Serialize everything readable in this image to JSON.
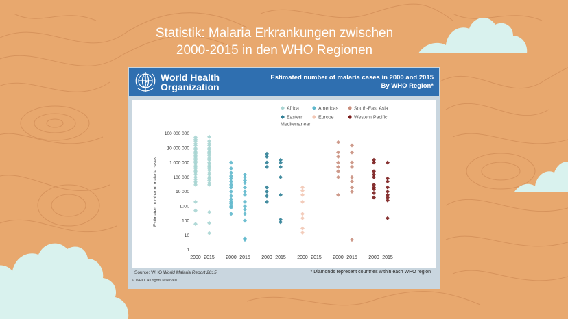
{
  "slide": {
    "title_line1": "Statistik: Malaria Erkrankungen zwischen",
    "title_line2": "2000-2015 in den WHO Regionen"
  },
  "header": {
    "org_line1": "World Health",
    "org_line2": "Organization",
    "title_line1": "Estimated number of malaria cases in 2000 and 2015",
    "title_line2": "By WHO Region*"
  },
  "footer": {
    "source_prefix": "Source: WHO ",
    "source_italic": "World Malaria Report 2015",
    "note": "* Diamonds represent countries within each WHO region",
    "copyright": "© WHO. All rights reserved."
  },
  "colors": {
    "background": "#e8a86e",
    "header": "#2f6fb0",
    "cloud": "#d9f2ee"
  },
  "chart_data": {
    "type": "scatter",
    "title": "Estimated number of malaria cases in 2000 and 2015",
    "subtitle": "By WHO Region*",
    "ylabel": "Estimated number of malaria cases",
    "yscale": "log",
    "ylim": [
      1,
      100000000
    ],
    "yticks": [
      {
        "v": 1,
        "label": "1"
      },
      {
        "v": 10,
        "label": "10"
      },
      {
        "v": 100,
        "label": "100"
      },
      {
        "v": 1000,
        "label": "1000"
      },
      {
        "v": 10000,
        "label": "10 000"
      },
      {
        "v": 100000,
        "label": "100 000"
      },
      {
        "v": 1000000,
        "label": "1 000 000"
      },
      {
        "v": 10000000,
        "label": "10 000 000"
      },
      {
        "v": 100000000,
        "label": "100 000 000"
      }
    ],
    "legend_placement": "top",
    "legend": [
      {
        "label": "Africa",
        "color": "#a9d5d3"
      },
      {
        "label": "Americas",
        "color": "#5fb8cc"
      },
      {
        "label": "South-East Asia",
        "color": "#c98f7e"
      },
      {
        "label": "Eastern Mediterranean",
        "color": "#2f7f96"
      },
      {
        "label": "Europe",
        "color": "#f2c6b4"
      },
      {
        "label": "Western Pacific",
        "color": "#7a1c1c"
      }
    ],
    "series": [
      {
        "name": "Africa",
        "color": "#a9d5d3",
        "groups": [
          {
            "year": "2000",
            "values": [
              55000000,
              40000000,
              30000000,
              20000000,
              15000000,
              10000000,
              8000000,
              6000000,
              5000000,
              4000000,
              3000000,
              2500000,
              2000000,
              1500000,
              1200000,
              1000000,
              800000,
              600000,
              500000,
              400000,
              300000,
              250000,
              200000,
              150000,
              100000,
              70000,
              50000,
              40000,
              30000,
              2000,
              500,
              60
            ]
          },
          {
            "year": "2015",
            "values": [
              60000000,
              30000000,
              20000000,
              15000000,
              10000000,
              8000000,
              6000000,
              5000000,
              4000000,
              3000000,
              2000000,
              1500000,
              1000000,
              800000,
              600000,
              500000,
              400000,
              300000,
              200000,
              150000,
              100000,
              80000,
              60000,
              40000,
              30000,
              400,
              70,
              14
            ]
          }
        ]
      },
      {
        "name": "Americas",
        "color": "#5fb8cc",
        "groups": [
          {
            "year": "2000",
            "values": [
              1000000,
              400000,
              200000,
              120000,
              80000,
              50000,
              30000,
              20000,
              10000,
              5000,
              3000,
              2000,
              1500,
              1000,
              800,
              300
            ]
          },
          {
            "year": "2015",
            "values": [
              150000,
              100000,
              60000,
              40000,
              20000,
              10000,
              6000,
              2000,
              1000,
              600,
              300,
              100,
              6,
              5
            ]
          }
        ]
      },
      {
        "name": "Eastern Mediterranean",
        "color": "#2f7f96",
        "groups": [
          {
            "year": "2000",
            "values": [
              4000000,
              2500000,
              1000000,
              500000,
              20000,
              10000,
              5000,
              2000
            ]
          },
          {
            "year": "2015",
            "values": [
              1500000,
              1000000,
              500000,
              100000,
              6000,
              120,
              80
            ]
          }
        ]
      },
      {
        "name": "Europe",
        "color": "#f2c6b4",
        "groups": [
          {
            "year": "2000",
            "values": [
              20000,
              12000,
              6000,
              2000,
              300,
              150,
              30,
              15
            ]
          },
          {
            "year": "2015",
            "values": []
          }
        ]
      },
      {
        "name": "South-East Asia",
        "color": "#c98f7e",
        "groups": [
          {
            "year": "2000",
            "values": [
              25000000,
              5000000,
              2500000,
              1000000,
              500000,
              250000,
              100000,
              6000
            ]
          },
          {
            "year": "2015",
            "values": [
              15000000,
              5000000,
              1000000,
              500000,
              100000,
              50000,
              20000,
              10000,
              5
            ]
          }
        ]
      },
      {
        "name": "Western Pacific",
        "color": "#7a1c1c",
        "groups": [
          {
            "year": "2000",
            "values": [
              1500000,
              1000000,
              250000,
              150000,
              100000,
              30000,
              20000,
              15000,
              8000,
              4000
            ]
          },
          {
            "year": "2015",
            "values": [
              1000000,
              80000,
              50000,
              20000,
              10000,
              6000,
              4000,
              2500,
              150
            ]
          }
        ]
      }
    ]
  }
}
